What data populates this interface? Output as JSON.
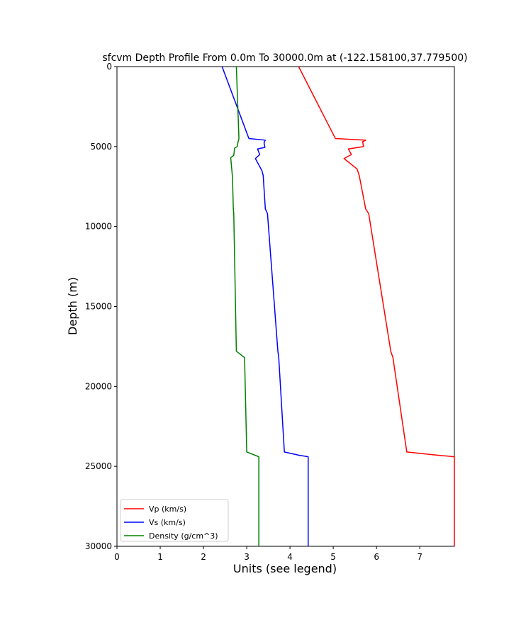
{
  "chart_data": {
    "type": "line",
    "title": "sfcvm Depth Profile From 0.0m To 30000.0m at (-122.158100,37.779500)",
    "xlabel": "Units (see legend)",
    "ylabel": "Depth (m)",
    "xlim": [
      0,
      7.8
    ],
    "ylim": [
      30000,
      0
    ],
    "y_inverted": true,
    "grid": false,
    "legend_position": "lower-left",
    "x_ticks": [
      "0",
      "1",
      "2",
      "3",
      "4",
      "5",
      "6",
      "7"
    ],
    "y_ticks": [
      "0",
      "5000",
      "10000",
      "15000",
      "20000",
      "25000",
      "30000"
    ],
    "series": [
      {
        "name": "Vp (km/s)",
        "color": "#ff0000",
        "points": [
          [
            4.2,
            0
          ],
          [
            5.05,
            4500
          ],
          [
            5.75,
            4600
          ],
          [
            5.68,
            4700
          ],
          [
            5.7,
            5000
          ],
          [
            5.35,
            5150
          ],
          [
            5.42,
            5500
          ],
          [
            5.25,
            5750
          ],
          [
            5.55,
            6400
          ],
          [
            5.6,
            6800
          ],
          [
            5.75,
            8900
          ],
          [
            5.82,
            9200
          ],
          [
            6.33,
            17800
          ],
          [
            6.38,
            18200
          ],
          [
            6.7,
            24100
          ],
          [
            7.4,
            24300
          ],
          [
            7.8,
            24400
          ],
          [
            7.8,
            30000
          ]
        ]
      },
      {
        "name": "Vs (km/s)",
        "color": "#0000ff",
        "points": [
          [
            2.43,
            0
          ],
          [
            3.05,
            4500
          ],
          [
            3.43,
            4600
          ],
          [
            3.4,
            4750
          ],
          [
            3.42,
            5050
          ],
          [
            3.25,
            5150
          ],
          [
            3.3,
            5500
          ],
          [
            3.2,
            5750
          ],
          [
            3.35,
            6500
          ],
          [
            3.38,
            6800
          ],
          [
            3.43,
            8900
          ],
          [
            3.48,
            9200
          ],
          [
            3.72,
            17800
          ],
          [
            3.74,
            18200
          ],
          [
            3.87,
            24100
          ],
          [
            4.2,
            24300
          ],
          [
            4.42,
            24400
          ],
          [
            4.42,
            30000
          ]
        ]
      },
      {
        "name": "Density (g/cm^3)",
        "color": "#008000",
        "points": [
          [
            2.76,
            0
          ],
          [
            2.82,
            4500
          ],
          [
            2.8,
            4700
          ],
          [
            2.78,
            5000
          ],
          [
            2.72,
            5100
          ],
          [
            2.7,
            5550
          ],
          [
            2.63,
            5700
          ],
          [
            2.66,
            6600
          ],
          [
            2.67,
            6900
          ],
          [
            2.69,
            8900
          ],
          [
            2.7,
            9200
          ],
          [
            2.76,
            17800
          ],
          [
            2.95,
            18200
          ],
          [
            3.0,
            24100
          ],
          [
            3.28,
            24400
          ],
          [
            3.28,
            30000
          ]
        ]
      }
    ]
  }
}
